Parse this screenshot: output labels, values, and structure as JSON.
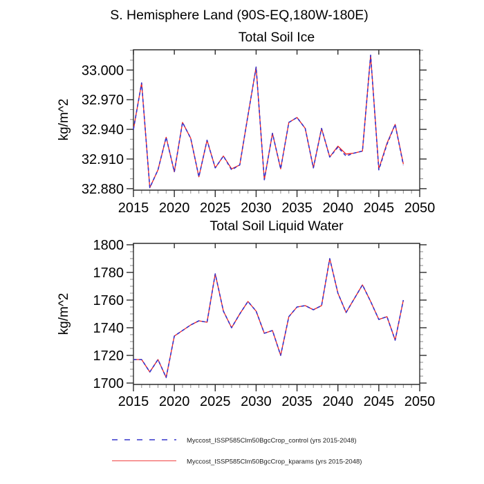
{
  "titles": {
    "main": "S. Hemisphere Land (90S-EQ,180W-180E)"
  },
  "legend": {
    "entries": [
      {
        "label": "Myccost_ISSP585Clm50BgcCrop_control (yrs 2015-2048)",
        "color": "#3333cc",
        "style": "dashed"
      },
      {
        "label": "Myccost_ISSP585Clm50BgcCrop_kparams (yrs 2015-2048)",
        "color": "#ee2222",
        "style": "solid"
      }
    ]
  },
  "chart_data": [
    {
      "type": "line",
      "title": "Total Soil Ice",
      "ylabel": "kg/m^2",
      "x": [
        2015,
        2016,
        2017,
        2018,
        2019,
        2020,
        2021,
        2022,
        2023,
        2024,
        2025,
        2026,
        2027,
        2028,
        2029,
        2030,
        2031,
        2032,
        2033,
        2034,
        2035,
        2036,
        2037,
        2038,
        2039,
        2040,
        2041,
        2042,
        2043,
        2044,
        2045,
        2046,
        2047,
        2048
      ],
      "series": [
        {
          "name": "Myccost_ISSP585Clm50BgcCrop_control (yrs 2015-2048)",
          "color": "#3333cc",
          "style": "dashed",
          "values": [
            32.94,
            32.987,
            32.881,
            32.899,
            32.932,
            32.897,
            32.947,
            32.931,
            32.892,
            32.929,
            32.901,
            32.913,
            32.899,
            32.904,
            32.954,
            33.003,
            32.889,
            32.936,
            32.9,
            32.947,
            32.952,
            32.941,
            32.901,
            32.941,
            32.912,
            32.922,
            32.913,
            32.916,
            32.918,
            33.015,
            32.899,
            32.925,
            32.945,
            32.904
          ]
        },
        {
          "name": "Myccost_ISSP585Clm50BgcCrop_kparams (yrs 2015-2048)",
          "color": "#ee2222",
          "style": "solid",
          "values": [
            32.94,
            32.987,
            32.881,
            32.899,
            32.932,
            32.897,
            32.947,
            32.931,
            32.892,
            32.929,
            32.901,
            32.913,
            32.9,
            32.904,
            32.954,
            33.003,
            32.889,
            32.936,
            32.9,
            32.947,
            32.952,
            32.941,
            32.901,
            32.941,
            32.912,
            32.923,
            32.915,
            32.916,
            32.918,
            33.015,
            32.9,
            32.926,
            32.945,
            32.905
          ]
        }
      ],
      "xlim": [
        2015,
        2050
      ],
      "ylim": [
        32.8785,
        33.0205
      ],
      "xticks": [
        2015,
        2020,
        2025,
        2030,
        2035,
        2040,
        2045,
        2050
      ],
      "xtick_labels": [
        "2015",
        "2020",
        "2025",
        "2030",
        "2035",
        "2040",
        "2045",
        "2050"
      ],
      "yticks": [
        32.88,
        32.91,
        32.94,
        32.97,
        33.0
      ],
      "ytick_labels": [
        "32.880",
        "32.910",
        "32.940",
        "32.970",
        "33.000"
      ],
      "x_minor_step": 1,
      "y_minor_step": 0.01,
      "grid": false,
      "legend_position": "below"
    },
    {
      "type": "line",
      "title": "Total Soil Liquid Water",
      "ylabel": "kg/m^2",
      "x": [
        2015,
        2016,
        2017,
        2018,
        2019,
        2020,
        2021,
        2022,
        2023,
        2024,
        2025,
        2026,
        2027,
        2028,
        2029,
        2030,
        2031,
        2032,
        2033,
        2034,
        2035,
        2036,
        2037,
        2038,
        2039,
        2040,
        2041,
        2042,
        2043,
        2044,
        2045,
        2046,
        2047,
        2048
      ],
      "series": [
        {
          "name": "Myccost_ISSP585Clm50BgcCrop_control (yrs 2015-2048)",
          "color": "#3333cc",
          "style": "dashed",
          "values": [
            1717,
            1717,
            1708,
            1717,
            1704,
            1734,
            1738,
            1742,
            1745,
            1744,
            1779,
            1752,
            1740,
            1750,
            1759,
            1752,
            1736,
            1738,
            1720,
            1748,
            1755,
            1756,
            1753,
            1756,
            1790,
            1765,
            1751,
            1761,
            1771,
            1759,
            1746,
            1748,
            1731,
            1760
          ]
        },
        {
          "name": "Myccost_ISSP585Clm50BgcCrop_kparams (yrs 2015-2048)",
          "color": "#ee2222",
          "style": "solid",
          "values": [
            1717,
            1717,
            1708,
            1717,
            1704,
            1734,
            1738,
            1742,
            1745,
            1744,
            1779,
            1752,
            1740,
            1750,
            1759,
            1752,
            1736,
            1738,
            1720,
            1748,
            1755,
            1756,
            1753,
            1756,
            1790,
            1765,
            1751,
            1761,
            1771,
            1759,
            1746,
            1748,
            1731,
            1760
          ]
        }
      ],
      "xlim": [
        2015,
        2050
      ],
      "ylim": [
        1699,
        1801
      ],
      "xticks": [
        2015,
        2020,
        2025,
        2030,
        2035,
        2040,
        2045,
        2050
      ],
      "xtick_labels": [
        "2015",
        "2020",
        "2025",
        "2030",
        "2035",
        "2040",
        "2045",
        "2050"
      ],
      "yticks": [
        1700,
        1720,
        1740,
        1760,
        1780,
        1800
      ],
      "ytick_labels": [
        "1700",
        "1720",
        "1740",
        "1760",
        "1780",
        "1800"
      ],
      "x_minor_step": 1,
      "y_minor_step": 5,
      "grid": false,
      "legend_position": "below"
    }
  ]
}
